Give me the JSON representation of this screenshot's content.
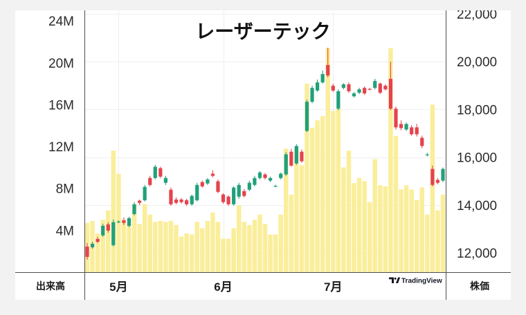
{
  "page": {
    "background": "#f2f2f2",
    "panel": "#ffffff"
  },
  "branding": {
    "text": "TradingView",
    "icon": "tradingview-logo-icon"
  },
  "chart_data": {
    "type": "candlestick",
    "title": "レーザーテック",
    "ylabel_left": "出来高",
    "ylabel_right": "株価",
    "grid": true,
    "colors": {
      "up": "#22a07a",
      "down": "#e5434d",
      "volume": "#faee9b",
      "grid": "#efefef",
      "axis": "#4d4d4d"
    },
    "volume_axis": {
      "position": "left",
      "range": [
        0,
        25000000
      ],
      "ticks": [
        {
          "value": 24000000,
          "label": "24M"
        },
        {
          "value": 20000000,
          "label": "20M"
        },
        {
          "value": 16000000,
          "label": "16M"
        },
        {
          "value": 12000000,
          "label": "12M"
        },
        {
          "value": 8000000,
          "label": "8M"
        },
        {
          "value": 4000000,
          "label": "4M"
        }
      ]
    },
    "price_axis": {
      "position": "right",
      "range": [
        11190,
        22145
      ],
      "ticks": [
        {
          "value": 22000,
          "label": "22,000"
        },
        {
          "value": 20000,
          "label": "20,000"
        },
        {
          "value": 18000,
          "label": "18,000"
        },
        {
          "value": 16000,
          "label": "16,000"
        },
        {
          "value": 14000,
          "label": "14,000"
        },
        {
          "value": 12000,
          "label": "12,000"
        }
      ]
    },
    "candles": [
      {
        "o": 12260,
        "h": 12410,
        "l": 11710,
        "c": 11830,
        "v": 4700000
      },
      {
        "o": 12230,
        "h": 12460,
        "l": 12170,
        "c": 12380,
        "v": 4900000
      },
      {
        "o": 12580,
        "h": 12670,
        "l": 12410,
        "c": 12460,
        "v": 3700000
      },
      {
        "o": 12730,
        "h": 13220,
        "l": 12670,
        "c": 13130,
        "v": 5000000
      },
      {
        "o": 13190,
        "h": 13280,
        "l": 12840,
        "c": 12930,
        "v": 5900000
      },
      {
        "o": 12320,
        "h": 13390,
        "l": 12260,
        "c": 13280,
        "v": 11600000
      },
      {
        "o": 13280,
        "h": 13350,
        "l": 13240,
        "c": 13310,
        "v": 9400000,
        "tick": "5月"
      },
      {
        "o": 13360,
        "h": 13480,
        "l": 13160,
        "c": 13250,
        "v": 5000000
      },
      {
        "o": 13130,
        "h": 13510,
        "l": 13070,
        "c": 13450,
        "v": 4600000
      },
      {
        "o": 13620,
        "h": 14120,
        "l": 13570,
        "c": 14030,
        "v": 6500000
      },
      {
        "o": 14180,
        "h": 14230,
        "l": 14000,
        "c": 14090,
        "v": 4600000
      },
      {
        "o": 14200,
        "h": 14840,
        "l": 14150,
        "c": 14760,
        "v": 6500000
      },
      {
        "o": 15130,
        "h": 15220,
        "l": 14780,
        "c": 14840,
        "v": 5500000
      },
      {
        "o": 15130,
        "h": 15680,
        "l": 15070,
        "c": 15600,
        "v": 4800000
      },
      {
        "o": 15540,
        "h": 15600,
        "l": 15130,
        "c": 15190,
        "v": 4900000
      },
      {
        "o": 14930,
        "h": 15220,
        "l": 14840,
        "c": 15130,
        "v": 4800000
      },
      {
        "o": 14640,
        "h": 14730,
        "l": 13970,
        "c": 14030,
        "v": 4900000
      },
      {
        "o": 14230,
        "h": 14320,
        "l": 14030,
        "c": 14090,
        "v": 4500000
      },
      {
        "o": 14230,
        "h": 14290,
        "l": 14060,
        "c": 14120,
        "v": 3400000
      },
      {
        "o": 14200,
        "h": 14260,
        "l": 13970,
        "c": 14030,
        "v": 3700000
      },
      {
        "o": 14030,
        "h": 14440,
        "l": 13970,
        "c": 14380,
        "v": 3600000
      },
      {
        "o": 14200,
        "h": 14930,
        "l": 14150,
        "c": 14840,
        "v": 4800000
      },
      {
        "o": 14960,
        "h": 15020,
        "l": 14730,
        "c": 14780,
        "v": 4200000
      },
      {
        "o": 14900,
        "h": 15130,
        "l": 14840,
        "c": 15070,
        "v": 4900000
      },
      {
        "o": 15310,
        "h": 15450,
        "l": 15160,
        "c": 15220,
        "v": 5700000
      },
      {
        "o": 14990,
        "h": 15070,
        "l": 14490,
        "c": 14550,
        "v": 4800000
      },
      {
        "o": 14440,
        "h": 14490,
        "l": 14060,
        "c": 14120,
        "v": 3200000,
        "tick": "6月"
      },
      {
        "o": 14350,
        "h": 14410,
        "l": 13970,
        "c": 14030,
        "v": 3200000
      },
      {
        "o": 14030,
        "h": 14780,
        "l": 13970,
        "c": 14730,
        "v": 4200000
      },
      {
        "o": 14350,
        "h": 14930,
        "l": 14260,
        "c": 14840,
        "v": 6400000
      },
      {
        "o": 14580,
        "h": 14670,
        "l": 14320,
        "c": 14380,
        "v": 4800000
      },
      {
        "o": 14640,
        "h": 15020,
        "l": 14580,
        "c": 14930,
        "v": 4500000
      },
      {
        "o": 14840,
        "h": 15220,
        "l": 14780,
        "c": 15130,
        "v": 5000000
      },
      {
        "o": 15130,
        "h": 15420,
        "l": 15070,
        "c": 15360,
        "v": 5500000
      },
      {
        "o": 15280,
        "h": 15340,
        "l": 15070,
        "c": 15130,
        "v": 4600000
      },
      {
        "o": 15020,
        "h": 15190,
        "l": 14960,
        "c": 15130,
        "v": 3600000
      },
      {
        "o": 14790,
        "h": 14850,
        "l": 14750,
        "c": 14800,
        "v": 3600000
      },
      {
        "o": 15130,
        "h": 15360,
        "l": 15070,
        "c": 15310,
        "v": 5500000
      },
      {
        "o": 15280,
        "h": 16210,
        "l": 15220,
        "c": 16120,
        "v": 11800000
      },
      {
        "o": 16230,
        "h": 16350,
        "l": 15600,
        "c": 15650,
        "v": 7400000
      },
      {
        "o": 15740,
        "h": 16550,
        "l": 15680,
        "c": 16470,
        "v": 11800000
      },
      {
        "o": 16230,
        "h": 16320,
        "l": 15770,
        "c": 15830,
        "v": 10200000
      },
      {
        "o": 17100,
        "h": 18410,
        "l": 17050,
        "c": 18320,
        "v": 18000000
      },
      {
        "o": 18320,
        "h": 18990,
        "l": 18260,
        "c": 18900,
        "v": 13800000
      },
      {
        "o": 18790,
        "h": 19250,
        "l": 18730,
        "c": 19130,
        "v": 14500000
      },
      {
        "o": 19130,
        "h": 19630,
        "l": 19080,
        "c": 19480,
        "v": 14900000
      },
      {
        "o": 19860,
        "h": 20580,
        "l": 19340,
        "c": 19420,
        "v": 21400000
      },
      {
        "o": 18990,
        "h": 19080,
        "l": 18730,
        "c": 18790,
        "v": 15400000,
        "tick": "7月"
      },
      {
        "o": 18030,
        "h": 18840,
        "l": 17970,
        "c": 18760,
        "v": 15600000
      },
      {
        "o": 18900,
        "h": 19100,
        "l": 18840,
        "c": 19050,
        "v": 10000000
      },
      {
        "o": 19050,
        "h": 19130,
        "l": 18700,
        "c": 18760,
        "v": 11600000
      },
      {
        "o": 18550,
        "h": 18730,
        "l": 18500,
        "c": 18670,
        "v": 8500000
      },
      {
        "o": 18700,
        "h": 18900,
        "l": 18640,
        "c": 18840,
        "v": 9000000
      },
      {
        "o": 18900,
        "h": 18960,
        "l": 18610,
        "c": 18670,
        "v": 8700000
      },
      {
        "o": 18860,
        "h": 18900,
        "l": 18800,
        "c": 18840,
        "v": 6700000
      },
      {
        "o": 18900,
        "h": 19280,
        "l": 18840,
        "c": 19190,
        "v": 10800000
      },
      {
        "o": 19080,
        "h": 19130,
        "l": 18640,
        "c": 18700,
        "v": 8300000
      },
      {
        "o": 18990,
        "h": 19050,
        "l": 18790,
        "c": 18840,
        "v": 8200000
      },
      {
        "o": 19280,
        "h": 20000,
        "l": 17970,
        "c": 18030,
        "v": 21400000
      },
      {
        "o": 18030,
        "h": 18120,
        "l": 17160,
        "c": 17250,
        "v": 13000000
      },
      {
        "o": 17390,
        "h": 17540,
        "l": 17130,
        "c": 17220,
        "v": 7900000
      },
      {
        "o": 17160,
        "h": 17450,
        "l": 17100,
        "c": 17390,
        "v": 8300000
      },
      {
        "o": 17250,
        "h": 17340,
        "l": 16900,
        "c": 16960,
        "v": 7900000
      },
      {
        "o": 17250,
        "h": 17390,
        "l": 16870,
        "c": 16960,
        "v": 6900000
      },
      {
        "o": 16810,
        "h": 16900,
        "l": 16380,
        "c": 16470,
        "v": 8100000
      },
      {
        "o": 16100,
        "h": 16180,
        "l": 16030,
        "c": 16120,
        "v": 5500000
      },
      {
        "o": 15510,
        "h": 15650,
        "l": 14780,
        "c": 14840,
        "v": 16000000
      },
      {
        "o": 15050,
        "h": 15130,
        "l": 14870,
        "c": 14930,
        "v": 5900000
      },
      {
        "o": 15020,
        "h": 15570,
        "l": 14960,
        "c": 15510,
        "v": 7400000
      }
    ]
  }
}
